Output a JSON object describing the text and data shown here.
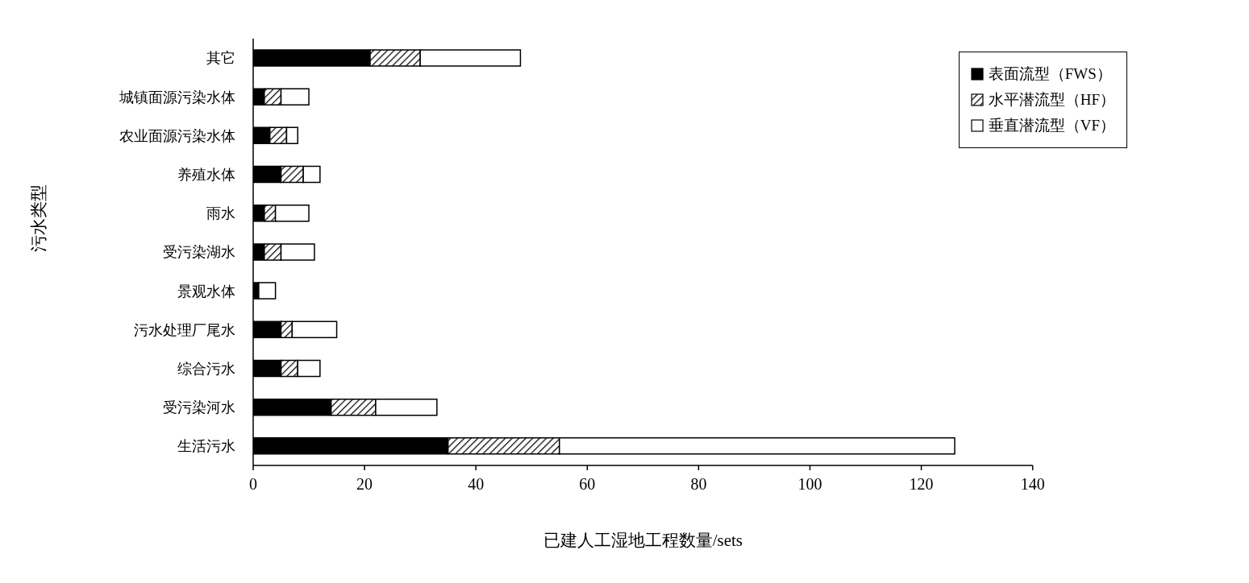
{
  "chart_data": {
    "type": "bar",
    "orientation": "horizontal",
    "stacked": true,
    "xlabel": "已建人工湿地工程数量/sets",
    "ylabel": "污水类型",
    "categories": [
      "其它",
      "城镇面源污染水体",
      "农业面源污染水体",
      "养殖水体",
      "雨水",
      "受污染湖水",
      "景观水体",
      "污水处理厂尾水",
      "综合污水",
      "受污染河水",
      "生活污水"
    ],
    "series": [
      {
        "name": "表面流型（FWS）",
        "color": "#000000",
        "values": [
          21,
          2,
          3,
          5,
          2,
          2,
          1,
          5,
          5,
          14,
          35
        ]
      },
      {
        "name": "水平潜流型（HF）",
        "color": "#000000",
        "values": [
          9,
          3,
          3,
          4,
          2,
          3,
          0,
          2,
          3,
          8,
          20
        ]
      },
      {
        "name": "垂直潜流型（VF）",
        "color": "#ffffff",
        "values": [
          18,
          5,
          2,
          3,
          6,
          6,
          3,
          8,
          4,
          11,
          71
        ]
      }
    ],
    "xlim": [
      0,
      140
    ],
    "xticks": [
      0,
      20,
      40,
      60,
      80,
      100,
      120,
      140
    ],
    "legend": "top right",
    "grid": false
  }
}
